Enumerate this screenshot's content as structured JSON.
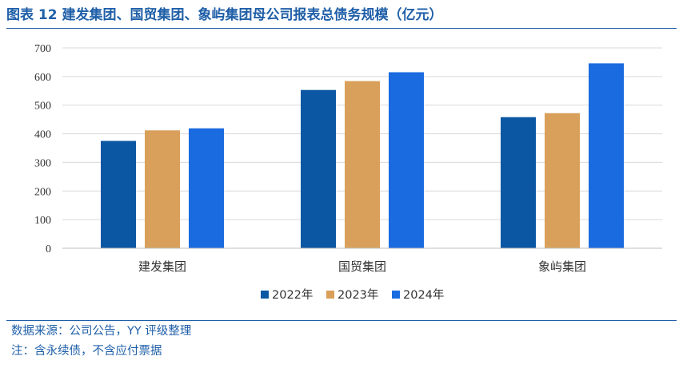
{
  "figure": {
    "title": "图表 12 建发集团、国贸集团、象屿集团母公司报表总债务规模（亿元）",
    "source": "数据来源：公司公告，YY 评级整理",
    "note": "注：含永续债，不含应付票据"
  },
  "chart_data": {
    "type": "bar",
    "title": "",
    "xlabel": "",
    "ylabel": "",
    "categories": [
      "建发集团",
      "国贸集团",
      "象屿集团"
    ],
    "series": [
      {
        "name": "2022年",
        "values": [
          375,
          553,
          458
        ],
        "color": "#0b57a4"
      },
      {
        "name": "2023年",
        "values": [
          412,
          584,
          472
        ],
        "color": "#d9a05b"
      },
      {
        "name": "2024年",
        "values": [
          419,
          615,
          646
        ],
        "color": "#1a6be0"
      }
    ],
    "ylim": [
      0,
      700
    ],
    "yticks": [
      0,
      100,
      200,
      300,
      400,
      500,
      600,
      700
    ],
    "grid": true,
    "legend_position": "bottom"
  }
}
